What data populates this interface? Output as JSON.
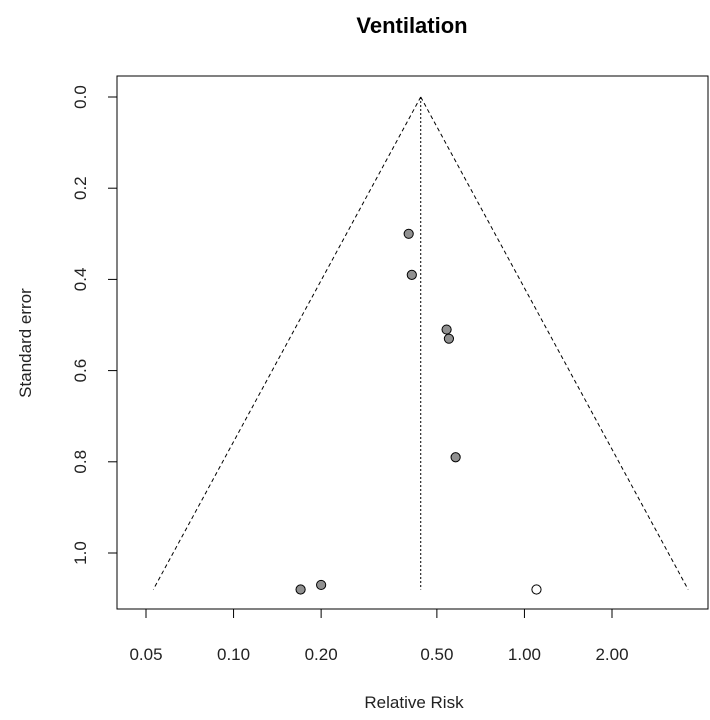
{
  "chart_data": {
    "type": "scatter",
    "subtype": "funnel",
    "title": "Ventilation",
    "xlabel": "Relative Risk",
    "ylabel": "Standard error",
    "x_scale": "log",
    "x_ticks": [
      0.05,
      0.1,
      0.2,
      0.5,
      1.0,
      2.0
    ],
    "x_tick_labels": [
      "0.05",
      "0.10",
      "0.20",
      "0.50",
      "1.00",
      "2.00"
    ],
    "xlim": [
      0.05,
      4.0
    ],
    "y_ticks": [
      0.0,
      0.2,
      0.4,
      0.6,
      0.8,
      1.0
    ],
    "y_tick_labels": [
      "0.0",
      "0.2",
      "0.4",
      "0.6",
      "0.8",
      "1.0"
    ],
    "ylim": [
      1.12,
      0.0
    ],
    "y_reversed": true,
    "grid": false,
    "summary_estimate": 0.44,
    "funnel_base_se": 1.08,
    "points": [
      {
        "x": 0.4,
        "y": 0.3,
        "filled": true
      },
      {
        "x": 0.41,
        "y": 0.39,
        "filled": true
      },
      {
        "x": 0.54,
        "y": 0.51,
        "filled": true
      },
      {
        "x": 0.55,
        "y": 0.53,
        "filled": true
      },
      {
        "x": 0.58,
        "y": 0.79,
        "filled": true
      },
      {
        "x": 0.2,
        "y": 1.07,
        "filled": true
      },
      {
        "x": 0.17,
        "y": 1.08,
        "filled": true
      },
      {
        "x": 1.1,
        "y": 1.08,
        "filled": false
      }
    ],
    "colors": {
      "filled_point": "#909090",
      "open_point": "#ffffff",
      "stroke": "#000000"
    }
  }
}
